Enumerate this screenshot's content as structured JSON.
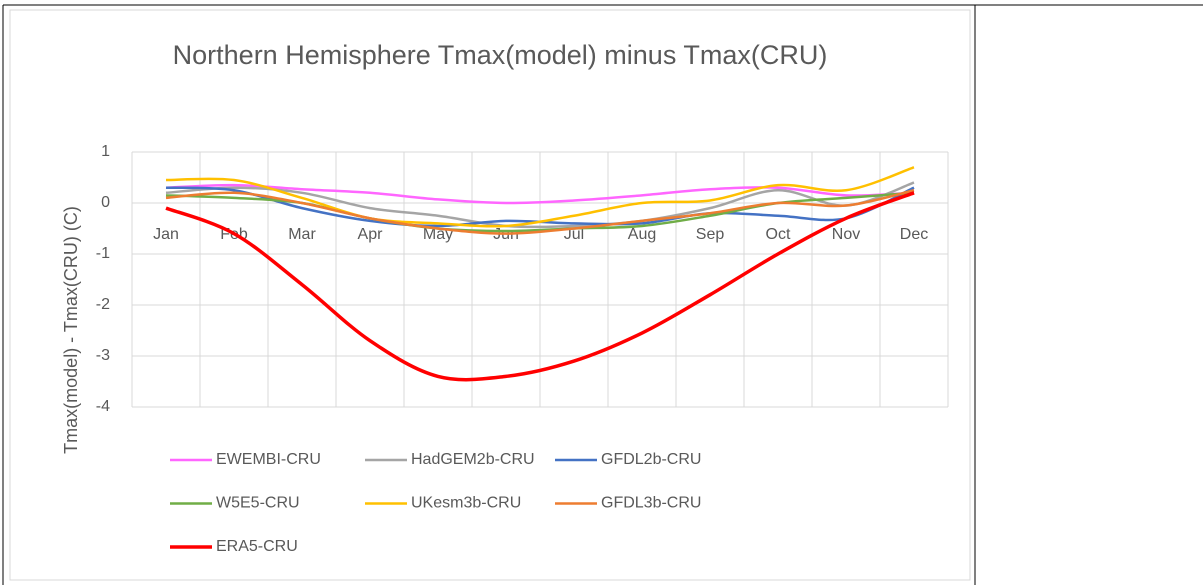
{
  "chart_data": {
    "type": "line",
    "title": "Northern Hemisphere Tmax(model) minus Tmax(CRU)",
    "y_label": "Tmax(model) - Tmax(CRU) (C)",
    "categories": [
      "Jan",
      "Feb",
      "Mar",
      "Apr",
      "May",
      "Jun",
      "Jul",
      "Aug",
      "Sep",
      "Oct",
      "Nov",
      "Dec"
    ],
    "ylim": [
      -4,
      1
    ],
    "yticks": [
      -4,
      -3,
      -2,
      -1,
      0,
      1
    ],
    "grid": true,
    "series": [
      {
        "name": "EWEMBI-CRU",
        "color": "#ff66ff",
        "values": [
          0.3,
          0.35,
          0.27,
          0.2,
          0.07,
          0.0,
          0.05,
          0.15,
          0.27,
          0.3,
          0.15,
          0.2
        ]
      },
      {
        "name": "HadGEM2b-CRU",
        "color": "#a5a5a5",
        "values": [
          0.2,
          0.3,
          0.2,
          -0.1,
          -0.25,
          -0.45,
          -0.45,
          -0.35,
          -0.1,
          0.25,
          -0.05,
          0.4
        ]
      },
      {
        "name": "GFDL2b-CRU",
        "color": "#4472c4",
        "values": [
          0.3,
          0.25,
          -0.1,
          -0.35,
          -0.45,
          -0.35,
          -0.4,
          -0.4,
          -0.2,
          -0.25,
          -0.3,
          0.3
        ]
      },
      {
        "name": "W5E5-CRU",
        "color": "#70ad47",
        "values": [
          0.15,
          0.1,
          0.0,
          -0.3,
          -0.5,
          -0.55,
          -0.5,
          -0.45,
          -0.25,
          0.0,
          0.1,
          0.2
        ]
      },
      {
        "name": "UKesm3b-CRU",
        "color": "#ffc000",
        "values": [
          0.45,
          0.45,
          0.1,
          -0.3,
          -0.4,
          -0.45,
          -0.25,
          0.0,
          0.05,
          0.35,
          0.25,
          0.7
        ]
      },
      {
        "name": "GFDL3b-CRU",
        "color": "#ed7d31",
        "values": [
          0.1,
          0.2,
          0.0,
          -0.3,
          -0.5,
          -0.6,
          -0.5,
          -0.35,
          -0.2,
          0.0,
          -0.05,
          0.25
        ]
      },
      {
        "name": "ERA5-CRU",
        "color": "#ff0000",
        "values": [
          -0.1,
          -0.6,
          -1.6,
          -2.7,
          -3.4,
          -3.4,
          -3.1,
          -2.55,
          -1.8,
          -1.0,
          -0.3,
          0.2
        ]
      }
    ]
  }
}
